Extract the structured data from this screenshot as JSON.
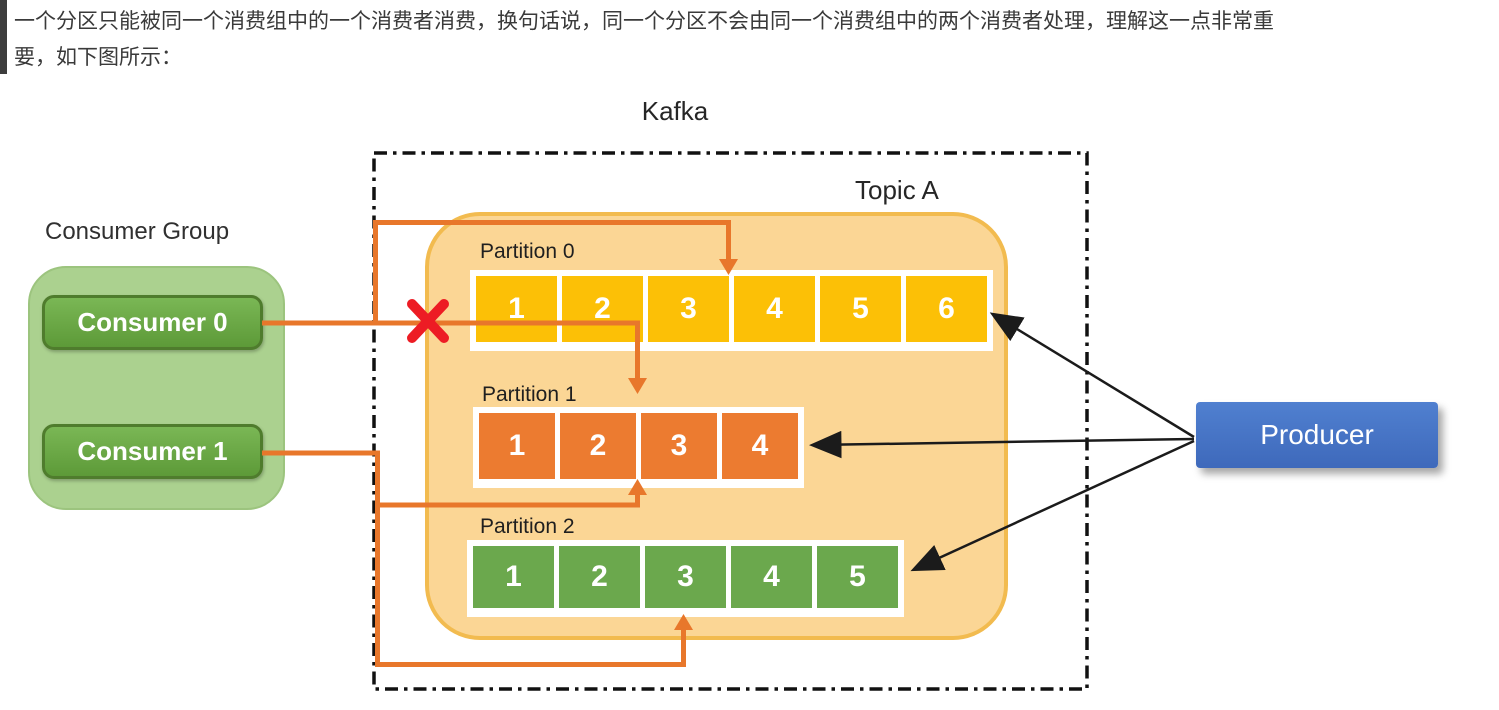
{
  "paragraph": {
    "line1": "一个分区只能被同一个消费组中的一个消费者消费，换句话说，同一个分区不会由同一个消费组中的两个消费者处理，理解这一点非常重",
    "line2": "要，如下图所示："
  },
  "diagram": {
    "kafka_label": "Kafka",
    "topic_label": "Topic A",
    "producer_label": "Producer",
    "consumer_group": {
      "label": "Consumer Group",
      "consumers": [
        "Consumer 0",
        "Consumer 1"
      ]
    },
    "partitions": [
      {
        "label": "Partition 0",
        "cells": [
          "1",
          "2",
          "3",
          "4",
          "5",
          "6"
        ],
        "color": "#fcc006"
      },
      {
        "label": "Partition 1",
        "cells": [
          "1",
          "2",
          "3",
          "4"
        ],
        "color": "#ec7b30"
      },
      {
        "label": "Partition 2",
        "cells": [
          "1",
          "2",
          "3",
          "4",
          "5"
        ],
        "color": "#6ba84d"
      }
    ],
    "colors": {
      "topic_fill": "#fbd695",
      "topic_border": "#f2bb4f",
      "consumer_group_fill": "#abd18f",
      "consumer_fill": "#69ad45",
      "producer_fill": "#4472c4",
      "connector_orange": "#e8772b",
      "arrow_black": "#1b1b1b",
      "cross_red": "#ed1c24"
    }
  }
}
